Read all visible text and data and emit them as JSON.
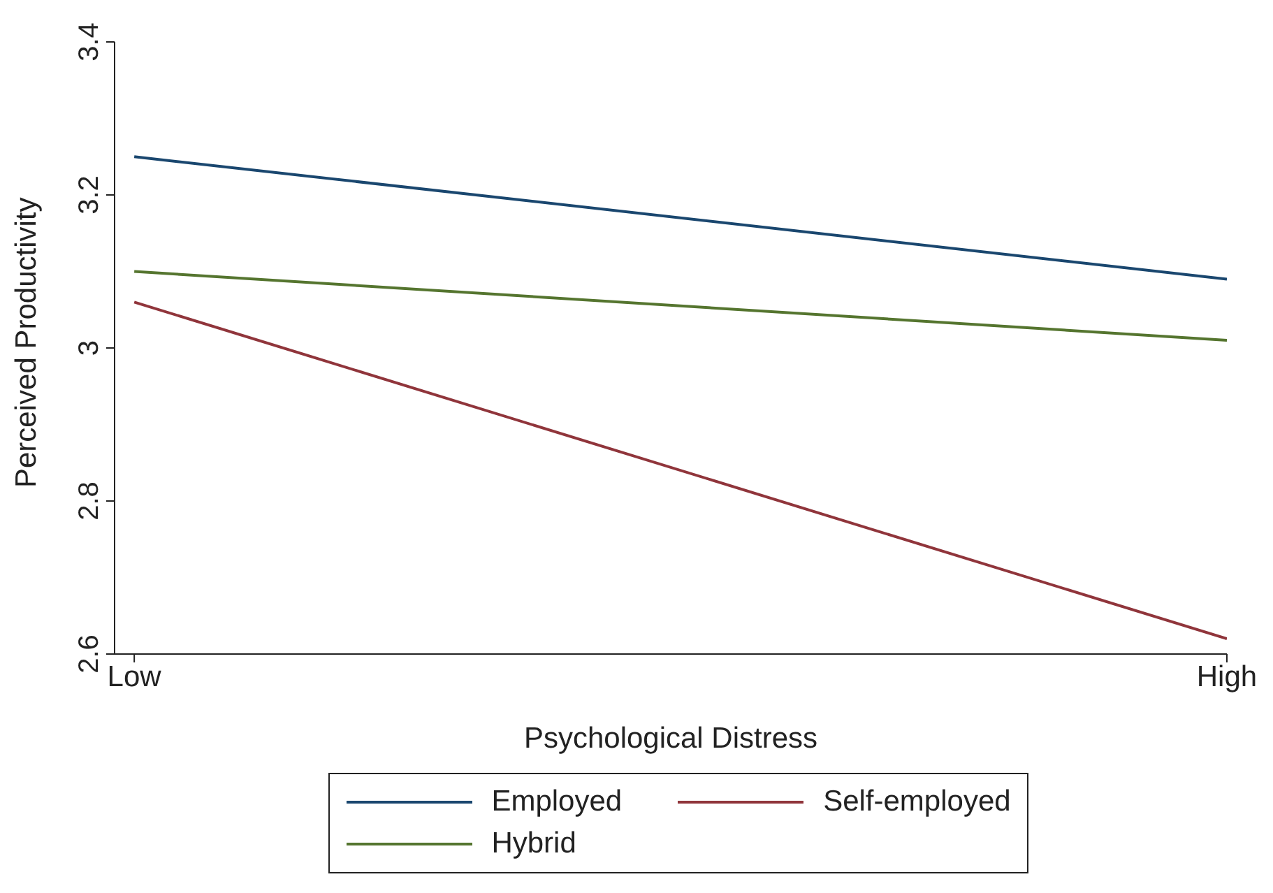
{
  "chart_data": {
    "type": "line",
    "xlabel": "Psychological Distress",
    "ylabel": "Perceived Productivity",
    "categories": [
      "Low",
      "High"
    ],
    "ylim": [
      2.6,
      3.4
    ],
    "yticks": [
      2.6,
      2.8,
      3,
      3.2,
      3.4
    ],
    "grid": false,
    "legend": "bottom",
    "marker": "none",
    "line_style": "solid",
    "series": [
      {
        "name": "Employed",
        "color": "#1a476f",
        "values": [
          3.25,
          3.09
        ]
      },
      {
        "name": "Self-employed",
        "color": "#90353b",
        "values": [
          3.06,
          2.62
        ]
      },
      {
        "name": "Hybrid",
        "color": "#55752f",
        "values": [
          3.1,
          3.01
        ]
      }
    ]
  }
}
